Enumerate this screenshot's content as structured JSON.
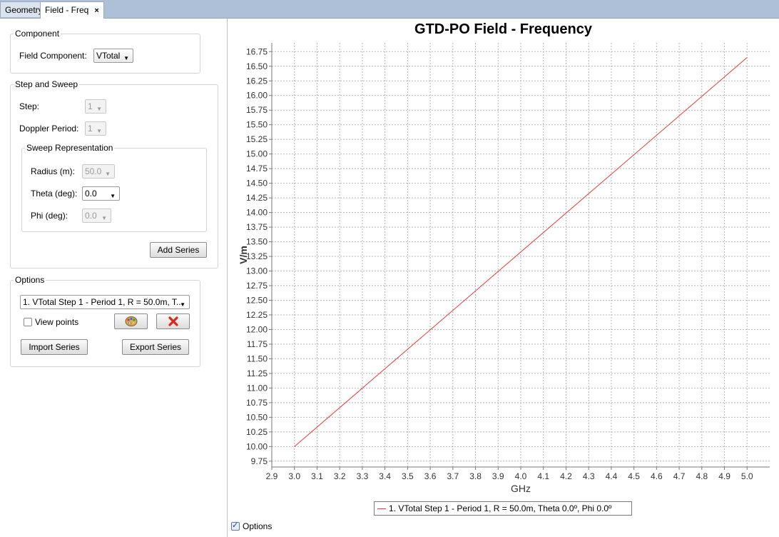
{
  "tabs": [
    {
      "label": "Geometry"
    },
    {
      "label": "Field - Freq",
      "close": "×"
    }
  ],
  "component": {
    "legend": "Component",
    "field_label": "Field Component:",
    "field_value": "VTotal"
  },
  "step_sweep": {
    "legend": "Step and Sweep",
    "step_label": "Step:",
    "step_value": "1",
    "doppler_label": "Doppler Period:",
    "doppler_value": "1",
    "sweep": {
      "legend": "Sweep Representation",
      "radius_label": "Radius (m):",
      "radius_value": "50.0",
      "theta_label": "Theta (deg):",
      "theta_value": "0.0",
      "phi_label": "Phi (deg):",
      "phi_value": "0.0"
    },
    "add_series": "Add Series"
  },
  "options": {
    "legend": "Options",
    "series_select": "1. VTotal Step 1 - Period 1, R = 50.0m, T...",
    "view_points_label": "View points",
    "view_points_checked": false,
    "import_label": "Import Series",
    "export_label": "Export Series"
  },
  "bottom_options_label": "Options",
  "bottom_options_checked": true,
  "chart_data": {
    "type": "line",
    "title": "GTD-PO Field - Frequency",
    "xlabel": "GHz",
    "ylabel": "V/m",
    "xlim": [
      2.9,
      5.1
    ],
    "ylim": [
      9.65,
      16.9
    ],
    "x_ticks": [
      "2.9",
      "3.0",
      "3.1",
      "3.2",
      "3.3",
      "3.4",
      "3.5",
      "3.6",
      "3.7",
      "3.8",
      "3.9",
      "4.0",
      "4.1",
      "4.2",
      "4.3",
      "4.4",
      "4.5",
      "4.6",
      "4.7",
      "4.8",
      "4.9",
      "5.0"
    ],
    "y_ticks": [
      "9.75",
      "10.00",
      "10.25",
      "10.50",
      "10.75",
      "11.00",
      "11.25",
      "11.50",
      "11.75",
      "12.00",
      "12.25",
      "12.50",
      "12.75",
      "13.00",
      "13.25",
      "13.50",
      "13.75",
      "14.00",
      "14.25",
      "14.50",
      "14.75",
      "15.00",
      "15.25",
      "15.50",
      "15.75",
      "16.00",
      "16.25",
      "16.50",
      "16.75"
    ],
    "grid": true,
    "legend_position": "bottom",
    "series": [
      {
        "name": "1. VTotal Step 1 - Period 1, R = 50.0m, Theta 0.0º, Phi 0.0º",
        "color": "#e53a3a",
        "x": [
          3.0,
          5.0
        ],
        "y": [
          10.0,
          16.65
        ]
      }
    ]
  }
}
